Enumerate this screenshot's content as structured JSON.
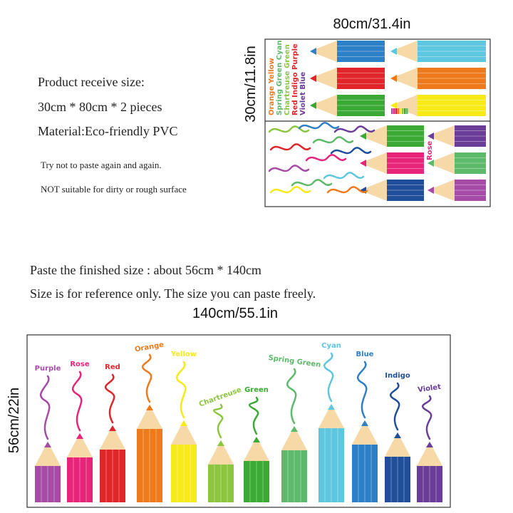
{
  "sheet": {
    "width_label": "80cm/31.4in",
    "height_label": "30cm/11.8in",
    "labels": [
      "Orange Yellow",
      "Spring Green Cyan",
      "Chartreuse Green",
      "Red Indigo Purple",
      "Violet Blue"
    ],
    "rose_label": "Rose"
  },
  "info": {
    "lines": [
      "Product receive size:",
      "30cm * 80cm * 2 pieces",
      "Material:Eco-friendly PVC"
    ],
    "notes": [
      "Try not to paste again and again.",
      "NOT suitable for dirty or rough surface"
    ]
  },
  "finished": {
    "lines": [
      "Paste the finished size : about 56cm * 140cm",
      "Size is for reference only. The size you can paste freely."
    ],
    "width_label": "140cm/55.1in",
    "height_label": "56cm/22in",
    "pencils": [
      {
        "name": "Purple",
        "color": "#a64ca6"
      },
      {
        "name": "Rose",
        "color": "#e8247a"
      },
      {
        "name": "Red",
        "color": "#e0262b"
      },
      {
        "name": "Orange",
        "color": "#ee7a1b"
      },
      {
        "name": "Yellow",
        "color": "#f6ea18"
      },
      {
        "name": "Chartreuse",
        "color": "#8cc63f"
      },
      {
        "name": "Green",
        "color": "#3aaa35"
      },
      {
        "name": "Spring Green",
        "color": "#5dba6a"
      },
      {
        "name": "Cyan",
        "color": "#5fc6e0"
      },
      {
        "name": "Blue",
        "color": "#2e80c6"
      },
      {
        "name": "Indigo",
        "color": "#1f4e9a"
      },
      {
        "name": "Violet",
        "color": "#6a3d98"
      }
    ]
  }
}
